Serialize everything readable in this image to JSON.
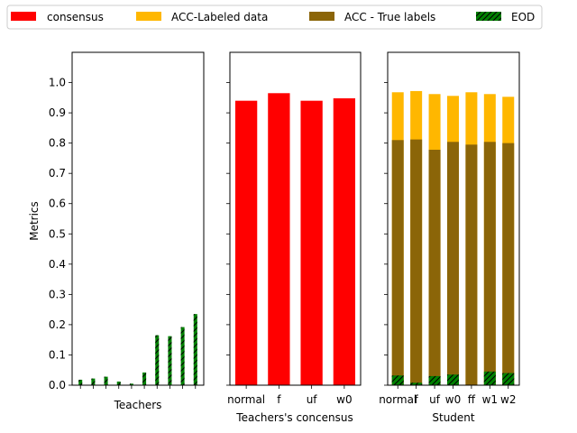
{
  "colors": {
    "consensus": "#ff0000",
    "acc_labeled": "#ffb700",
    "acc_true": "#8b6508",
    "eod": "#008000"
  },
  "legend": {
    "location": "top",
    "items": [
      {
        "label": "consensus",
        "color": "#ff0000",
        "hatch": false
      },
      {
        "label": "ACC-Labeled data",
        "color": "#ffb700",
        "hatch": false
      },
      {
        "label": "ACC - True labels",
        "color": "#8b6508",
        "hatch": false
      },
      {
        "label": "EOD",
        "color": "#008000",
        "hatch": true
      }
    ]
  },
  "chart_data": [
    {
      "type": "bar",
      "xlabel": "Teachers",
      "ylabel": "Metrics",
      "ylim": [
        0,
        1.1
      ],
      "yticks": [
        "0.0",
        "0.1",
        "0.2",
        "0.3",
        "0.4",
        "0.5",
        "0.6",
        "0.7",
        "0.8",
        "0.9",
        "1.0"
      ],
      "series": [
        {
          "values": [
            0.018,
            0.022,
            0.028,
            0.012,
            0.005,
            0.042,
            0.165,
            0.162,
            0.192,
            0.235
          ]
        }
      ]
    },
    {
      "type": "bar",
      "xlabel": "Teachers's concensus",
      "ylim": [
        0,
        1.1
      ],
      "categories": [
        "normal",
        "f",
        "uf",
        "w0"
      ],
      "series": [
        {
          "values": [
            0.94,
            0.965,
            0.94,
            0.948
          ]
        }
      ]
    },
    {
      "type": "bar",
      "xlabel": "Student",
      "ylim": [
        0,
        1.1
      ],
      "categories": [
        "normal",
        "f",
        "uf",
        "w0",
        "ff",
        "w1",
        "w2"
      ],
      "series": [
        {
          "values": [
            0.968,
            0.972,
            0.962,
            0.956,
            0.968,
            0.962,
            0.953
          ]
        },
        {
          "values": [
            0.81,
            0.812,
            0.778,
            0.804,
            0.795,
            0.804,
            0.8
          ]
        },
        {
          "values": [
            0.032,
            0.008,
            0.03,
            0.035,
            0.0,
            0.045,
            0.04
          ]
        }
      ]
    }
  ]
}
